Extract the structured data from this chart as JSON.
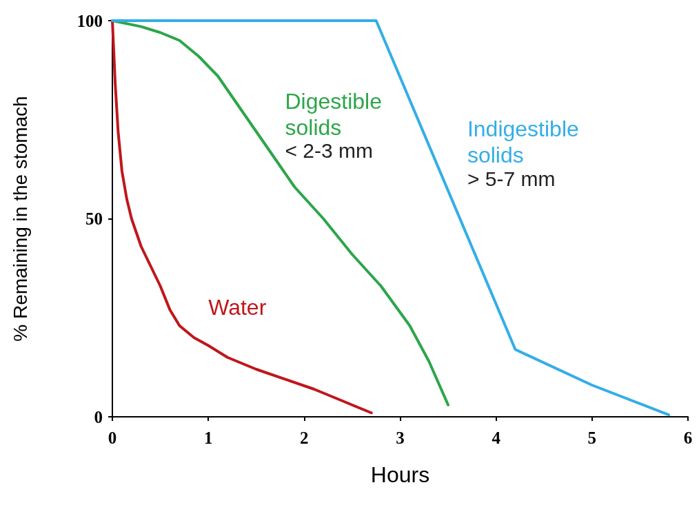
{
  "chart_data": {
    "type": "line",
    "xlabel": "Hours",
    "ylabel": "% Remaining in the stomach",
    "xlim": [
      0,
      6
    ],
    "xticks": [
      0,
      1,
      2,
      3,
      4,
      5,
      6
    ],
    "ylim": [
      0,
      100
    ],
    "yticks": [
      0,
      50,
      100
    ],
    "grid": false,
    "marker": "none",
    "line_style": "solid",
    "series": [
      {
        "name": "Water",
        "color": "#c0161c",
        "x": [
          0,
          0.03,
          0.06,
          0.1,
          0.15,
          0.2,
          0.3,
          0.4,
          0.5,
          0.6,
          0.7,
          0.85,
          1.0,
          1.2,
          1.5,
          1.8,
          2.1,
          2.4,
          2.7
        ],
        "values": [
          100,
          84,
          72,
          62,
          55,
          50,
          43,
          38,
          33,
          27,
          23,
          20,
          18,
          15,
          12,
          9.5,
          7,
          4,
          1
        ]
      },
      {
        "name": "Digestible solids",
        "color": "#2ca64a",
        "x": [
          0,
          0.3,
          0.5,
          0.7,
          0.9,
          1.1,
          1.3,
          1.5,
          1.7,
          1.9,
          2.2,
          2.5,
          2.8,
          3.1,
          3.3,
          3.5
        ],
        "values": [
          100,
          98.5,
          97,
          95,
          91,
          86,
          79,
          72,
          65,
          58,
          50,
          41,
          33,
          23,
          14,
          3
        ]
      },
      {
        "name": "Indigestible solids",
        "color": "#33aee6",
        "x": [
          0,
          2.75,
          4.2,
          5,
          5.8
        ],
        "values": [
          100,
          100,
          17,
          8,
          0.5
        ]
      }
    ],
    "annotations": [
      "< 2-3 mm",
      "> 5-7 mm"
    ]
  }
}
